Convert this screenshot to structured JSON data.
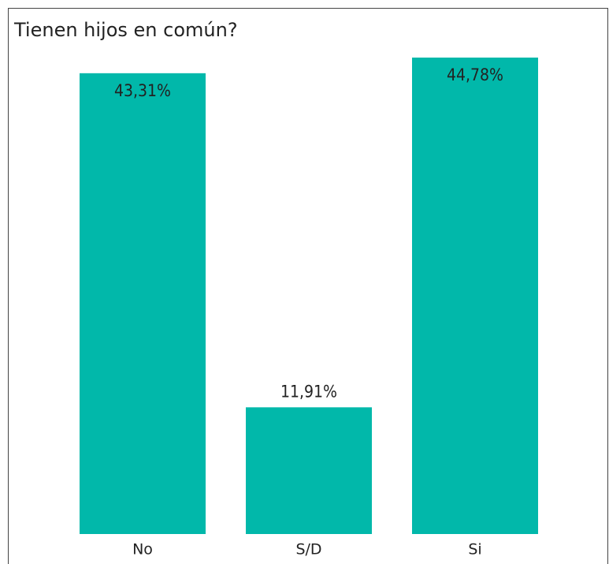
{
  "chart_data": {
    "type": "bar",
    "title": "Tienen hijos en común?",
    "categories": [
      "No",
      "S/D",
      "Si"
    ],
    "values": [
      43.31,
      11.91,
      44.78
    ],
    "value_labels": [
      "43,31%",
      "11,91%",
      "44,78%"
    ],
    "color": "#01b8aa"
  }
}
